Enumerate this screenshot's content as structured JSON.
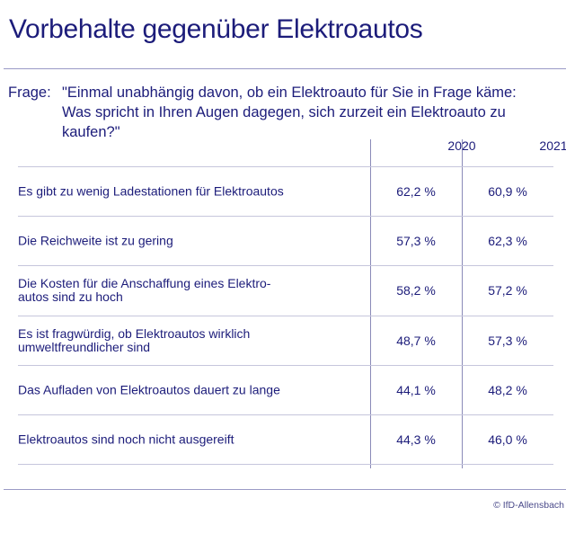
{
  "title": "Vorbehalte gegenüber Elektroautos",
  "question": {
    "label": "Frage:",
    "text": "\"Einmal unabhängig davon, ob ein Elektroauto für Sie in Frage käme: Was spricht in Ihren Augen dagegen, sich zurzeit ein Elektroauto zu kaufen?\""
  },
  "chart_data": {
    "type": "table",
    "columns": [
      "2020",
      "2021"
    ],
    "rows": [
      {
        "label": "Es gibt zu wenig Ladestationen für Elektroautos",
        "values": [
          "62,2 %",
          "60,9 %"
        ]
      },
      {
        "label": "Die Reichweite ist zu gering",
        "values": [
          "57,3 %",
          "62,3 %"
        ]
      },
      {
        "label": "Die Kosten für die Anschaffung eines Elektro-\nautos sind zu hoch",
        "values": [
          "58,2 %",
          "57,2 %"
        ]
      },
      {
        "label": "Es ist fragwürdig, ob Elektroautos wirklich\numweltfreundlicher sind",
        "values": [
          "48,7 %",
          "57,3 %"
        ]
      },
      {
        "label": "Das Aufladen von Elektroautos dauert zu lange",
        "values": [
          "44,1 %",
          "48,2 %"
        ]
      },
      {
        "label": "Elektroautos sind noch nicht ausgereift",
        "values": [
          "44,3 %",
          "46,0 %"
        ]
      }
    ]
  },
  "source": "© IfD-Allensbach"
}
